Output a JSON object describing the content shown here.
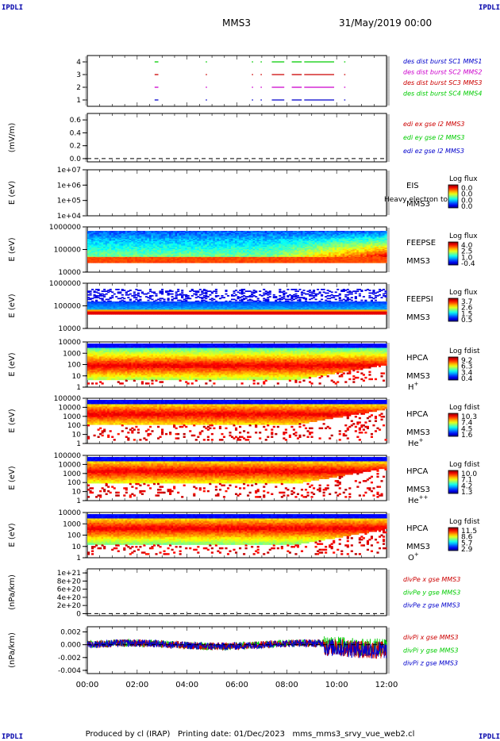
{
  "header": {
    "corner_label": "IPDLI",
    "spacecraft": "MMS3",
    "datetime": "31/May/2019 00:00"
  },
  "footer": {
    "produced_by": "Produced by cl (IRAP)",
    "printing_date": "Printing date: 01/Dec/2023",
    "file": "mms_mms3_srvy_vue_web2.cl"
  },
  "colors": {
    "mms1": "#0000cc",
    "mms2": "#cc00cc",
    "mms3": "#cc0000",
    "mms4": "#00cc00",
    "x": "#cc0000",
    "y": "#00cc00",
    "z": "#0000cc"
  },
  "chart_data": [
    {
      "id": "burst",
      "type": "line",
      "ylim": [
        0.5,
        4.5
      ],
      "ticks": [
        "1",
        "2",
        "3",
        "4"
      ],
      "tick_values": [
        1,
        2,
        3,
        4
      ],
      "series": [
        {
          "name": "des dist burst SC1 MMS1",
          "color": "#0000cc",
          "y": 1
        },
        {
          "name": "des dist burst SC2 MMS2",
          "color": "#cc00cc",
          "y": 2
        },
        {
          "name": "des dist burst SC3 MMS3",
          "color": "#cc0000",
          "y": 3
        },
        {
          "name": "des dist burst SC4 MMS4",
          "color": "#00cc00",
          "y": 4
        }
      ],
      "intervals": [
        [
          2.7,
          2.85
        ],
        [
          4.75,
          4.8
        ],
        [
          6.6,
          6.65
        ],
        [
          6.95,
          7.0
        ],
        [
          7.4,
          7.9
        ],
        [
          8.2,
          8.6
        ],
        [
          8.7,
          9.9
        ],
        [
          10.3,
          10.35
        ]
      ]
    },
    {
      "id": "edi",
      "type": "line",
      "ylabel": "(mV/m)",
      "ylim": [
        -0.05,
        0.7
      ],
      "ticks": [
        "0.0",
        "0.2",
        "0.4",
        "0.6"
      ],
      "tick_values": [
        0,
        0.2,
        0.4,
        0.6
      ],
      "series": [
        {
          "name": "edi ex gse l2 MMS3",
          "color": "#cc0000"
        },
        {
          "name": "edi ey gse l2 MMS3",
          "color": "#00cc00"
        },
        {
          "name": "edi ez gse l2 MMS3",
          "color": "#0000cc"
        }
      ],
      "zero_line": true
    },
    {
      "id": "eis",
      "type": "heatmap",
      "ylabel": "E (eV)",
      "ticks": [
        "1e+04",
        "1e+05",
        "1e+06",
        "1e+07"
      ],
      "label1": "EIS",
      "label2": "MMS3",
      "overlay": "Heavy electron to",
      "cbar_title": "Log flux",
      "cbar_ticks": [
        "0.0",
        "0.0",
        "0.0",
        "0.0"
      ]
    },
    {
      "id": "feepse",
      "type": "heatmap",
      "ylabel": "E (eV)",
      "ticks": [
        "10000",
        "100000",
        "1000000"
      ],
      "label1": "FEEPSE",
      "label2": "MMS3",
      "cbar_title": "Log flux",
      "cbar_ticks": [
        "4.0",
        "2.5",
        "1.0",
        "-0.4"
      ]
    },
    {
      "id": "feepsi",
      "type": "heatmap",
      "ylabel": "E (eV)",
      "ticks": [
        "10000",
        "100000",
        "1000000"
      ],
      "label1": "FEEPSI",
      "label2": "MMS3",
      "cbar_title": "Log flux",
      "cbar_ticks": [
        "3.7",
        "2.6",
        "1.5",
        "0.5"
      ]
    },
    {
      "id": "hpca_h",
      "type": "heatmap",
      "ylabel": "E (eV)",
      "ticks": [
        "1",
        "10",
        "100",
        "1000",
        "10000"
      ],
      "label1": "HPCA",
      "label2": "MMS3",
      "species": "H",
      "charge": "+",
      "cbar_title": "Log fdist",
      "cbar_ticks": [
        "9.2",
        "6.3",
        "3.4",
        "0.4"
      ]
    },
    {
      "id": "hpca_he",
      "type": "heatmap",
      "ylabel": "E (eV)",
      "ticks": [
        "1",
        "10",
        "100",
        "1000",
        "10000",
        "100000"
      ],
      "label1": "HPCA",
      "label2": "MMS3",
      "species": "He",
      "charge": "+",
      "cbar_title": "Log fdist",
      "cbar_ticks": [
        "10.3",
        "7.4",
        "4.5",
        "1.6"
      ]
    },
    {
      "id": "hpca_hepp",
      "type": "heatmap",
      "ylabel": "E (eV)",
      "ticks": [
        "1",
        "10",
        "100",
        "1000",
        "10000",
        "100000"
      ],
      "label1": "HPCA",
      "label2": "MMS3",
      "species": "He",
      "charge": "++",
      "cbar_title": "Log fdist",
      "cbar_ticks": [
        "10.0",
        "7.1",
        "4.2",
        "1.3"
      ]
    },
    {
      "id": "hpca_o",
      "type": "heatmap",
      "ylabel": "E (eV)",
      "ticks": [
        "1",
        "10",
        "100",
        "1000",
        "10000"
      ],
      "label1": "HPCA",
      "label2": "MMS3",
      "species": "O",
      "charge": "+",
      "cbar_title": "Log fdist",
      "cbar_ticks": [
        "11.5",
        "8.6",
        "5.7",
        "2.9"
      ]
    },
    {
      "id": "divpe",
      "type": "line",
      "ylabel": "(nPa/km)",
      "ylim": [
        -5e+19,
        1.1e+21
      ],
      "ticks": [
        "0",
        "2e+20",
        "4e+20",
        "6e+20",
        "8e+20",
        "1e+21"
      ],
      "tick_values": [
        0,
        2e+20,
        4e+20,
        6e+20,
        8e+20,
        1e+21
      ],
      "series": [
        {
          "name": "divPe x gse MMS3",
          "color": "#cc0000"
        },
        {
          "name": "divPe y gse MMS3",
          "color": "#00cc00"
        },
        {
          "name": "divPe z gse MMS3",
          "color": "#0000cc"
        }
      ],
      "zero_line": true
    },
    {
      "id": "divpi",
      "type": "line",
      "ylabel": "(nPa/km)",
      "ylim": [
        -0.0045,
        0.0028
      ],
      "ticks": [
        "-0.004",
        "-0.002",
        "0.000",
        "0.002"
      ],
      "tick_values": [
        -0.004,
        -0.002,
        0,
        0.002
      ],
      "series": [
        {
          "name": "divPi x gse MMS3",
          "color": "#cc0000"
        },
        {
          "name": "divPi y gse MMS3",
          "color": "#00cc00"
        },
        {
          "name": "divPi z gse MMS3",
          "color": "#0000cc"
        }
      ],
      "zero_line": true
    }
  ],
  "time_axis": {
    "ticks": [
      "00:00",
      "02:00",
      "04:00",
      "06:00",
      "08:00",
      "10:00",
      "12:00"
    ],
    "tick_hours": [
      0,
      2,
      4,
      6,
      8,
      10,
      12
    ],
    "xlim": [
      0,
      12
    ]
  }
}
